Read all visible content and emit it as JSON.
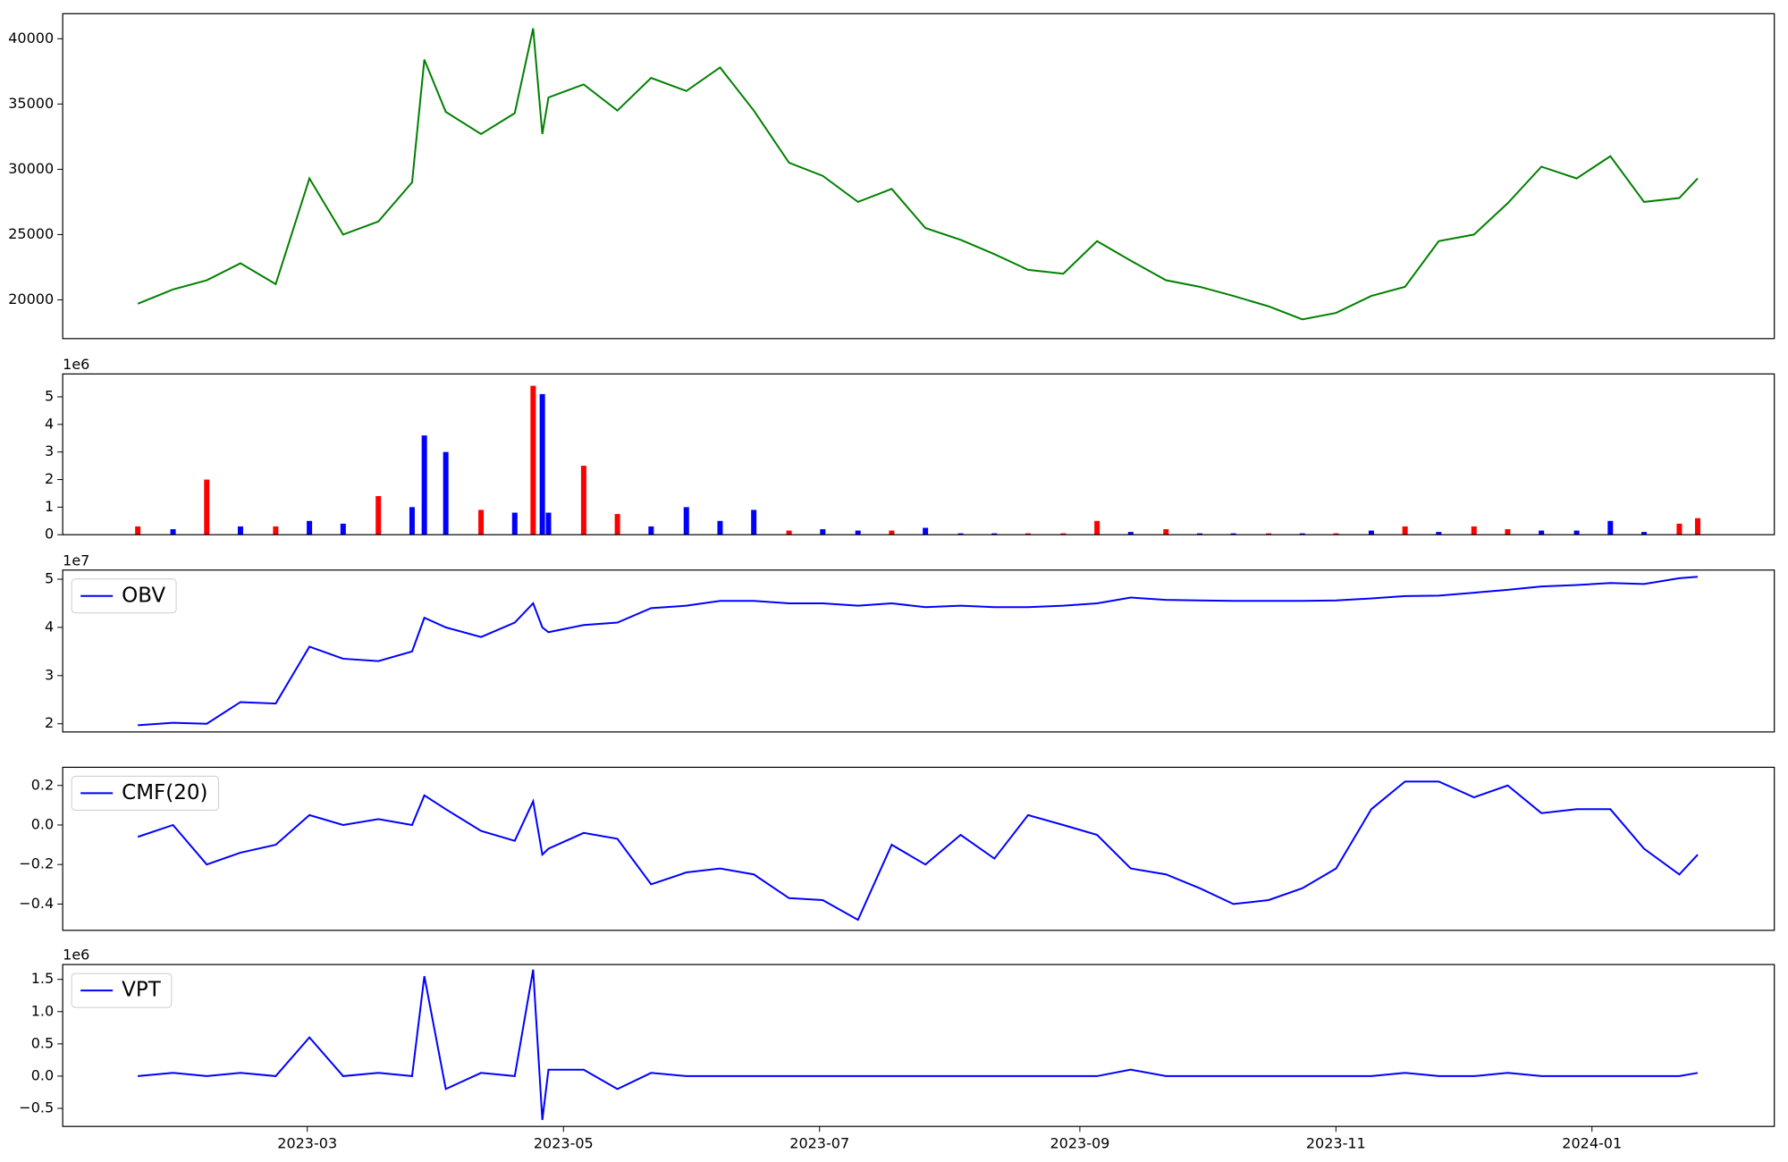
{
  "chart_data": [
    {
      "type": "line",
      "color": "green",
      "x": [
        2023.051,
        2023.074,
        2023.096,
        2023.118,
        2023.141,
        2023.163,
        2023.185,
        2023.208,
        2023.23,
        2023.238,
        2023.252,
        2023.275,
        2023.297,
        2023.309,
        2023.315,
        2023.319,
        2023.342,
        2023.364,
        2023.386,
        2023.409,
        2023.431,
        2023.453,
        2023.476,
        2023.498,
        2023.521,
        2023.543,
        2023.565,
        2023.588,
        2023.61,
        2023.632,
        2023.655,
        2023.677,
        2023.699,
        2023.722,
        2023.744,
        2023.766,
        2023.789,
        2023.811,
        2023.833,
        2023.856,
        2023.878,
        2023.9,
        2023.923,
        2023.945,
        2023.967,
        2023.99,
        2024.012,
        2024.034,
        2024.057,
        2024.069
      ],
      "values": [
        19700,
        20800,
        21500,
        22800,
        21200,
        29300,
        25000,
        26000,
        29000,
        38400,
        34400,
        32700,
        34300,
        40800,
        32700,
        35500,
        36500,
        34500,
        37000,
        36000,
        37800,
        34500,
        30500,
        29500,
        27500,
        28500,
        25500,
        24600,
        23500,
        22300,
        22000,
        24500,
        23000,
        21500,
        21000,
        20300,
        19500,
        18500,
        19000,
        20300,
        21000,
        24500,
        25000,
        27400,
        30200,
        29300,
        31000,
        27500,
        27800,
        29300
      ],
      "xlim": [
        2023.002,
        2024.119
      ],
      "ylim": [
        17030,
        41920
      ],
      "yticks": [
        20000,
        25000,
        30000,
        35000,
        40000
      ]
    },
    {
      "type": "bar",
      "offset_text": "1e6",
      "x": [
        2023.051,
        2023.074,
        2023.096,
        2023.118,
        2023.141,
        2023.163,
        2023.185,
        2023.208,
        2023.23,
        2023.238,
        2023.252,
        2023.275,
        2023.297,
        2023.309,
        2023.315,
        2023.319,
        2023.342,
        2023.364,
        2023.386,
        2023.409,
        2023.431,
        2023.453,
        2023.476,
        2023.498,
        2023.521,
        2023.543,
        2023.565,
        2023.588,
        2023.61,
        2023.632,
        2023.655,
        2023.677,
        2023.699,
        2023.722,
        2023.744,
        2023.766,
        2023.789,
        2023.811,
        2023.833,
        2023.856,
        2023.878,
        2023.9,
        2023.923,
        2023.945,
        2023.967,
        2023.99,
        2024.012,
        2024.034,
        2024.057,
        2024.069
      ],
      "values": [
        0.3,
        0.2,
        2.0,
        0.3,
        0.3,
        0.5,
        0.4,
        1.4,
        1.0,
        3.6,
        3.0,
        0.9,
        0.8,
        5.4,
        5.1,
        0.8,
        2.5,
        0.75,
        0.3,
        1.0,
        0.5,
        0.9,
        0.15,
        0.2,
        0.15,
        0.15,
        0.25,
        0.05,
        0.05,
        0.05,
        0.05,
        0.5,
        0.1,
        0.2,
        0.05,
        0.05,
        0.05,
        0.05,
        0.05,
        0.15,
        0.3,
        0.1,
        0.3,
        0.2,
        0.15,
        0.15,
        0.5,
        0.1,
        0.4,
        0.6
      ],
      "colors": [
        "red",
        "blue",
        "red",
        "blue",
        "red",
        "blue",
        "blue",
        "red",
        "blue",
        "blue",
        "blue",
        "red",
        "blue",
        "red",
        "blue",
        "blue",
        "red",
        "red",
        "blue",
        "blue",
        "blue",
        "blue",
        "red",
        "blue",
        "blue",
        "red",
        "blue",
        "blue",
        "blue",
        "red",
        "red",
        "red",
        "blue",
        "red",
        "blue",
        "blue",
        "red",
        "blue",
        "red",
        "blue",
        "red",
        "blue",
        "red",
        "red",
        "blue",
        "blue",
        "blue",
        "blue",
        "red",
        "red"
      ],
      "xlim": [
        2023.002,
        2024.119
      ],
      "ylim": [
        0,
        5.83
      ],
      "yticks": [
        0,
        1,
        2,
        3,
        4,
        5
      ]
    },
    {
      "type": "line",
      "offset_text": "1e7",
      "legend": "upper left",
      "x": [
        2023.051,
        2023.074,
        2023.096,
        2023.118,
        2023.141,
        2023.163,
        2023.185,
        2023.208,
        2023.23,
        2023.238,
        2023.252,
        2023.275,
        2023.297,
        2023.309,
        2023.315,
        2023.319,
        2023.342,
        2023.364,
        2023.386,
        2023.409,
        2023.431,
        2023.453,
        2023.476,
        2023.498,
        2023.521,
        2023.543,
        2023.565,
        2023.588,
        2023.61,
        2023.632,
        2023.655,
        2023.677,
        2023.699,
        2023.722,
        2023.744,
        2023.766,
        2023.789,
        2023.811,
        2023.833,
        2023.856,
        2023.878,
        2023.9,
        2023.923,
        2023.945,
        2023.967,
        2023.99,
        2024.012,
        2024.034,
        2024.057,
        2024.069
      ],
      "series": [
        {
          "name": "OBV",
          "color": "blue",
          "values": [
            1.97,
            2.02,
            2.0,
            2.45,
            2.42,
            3.6,
            3.35,
            3.3,
            3.5,
            4.2,
            4.0,
            3.8,
            4.1,
            4.5,
            4.0,
            3.9,
            4.05,
            4.1,
            4.4,
            4.45,
            4.55,
            4.55,
            4.5,
            4.5,
            4.45,
            4.5,
            4.42,
            4.45,
            4.42,
            4.42,
            4.45,
            4.5,
            4.62,
            4.57,
            4.56,
            4.55,
            4.55,
            4.55,
            4.56,
            4.6,
            4.65,
            4.66,
            4.72,
            4.78,
            4.85,
            4.88,
            4.92,
            4.9,
            5.02,
            5.05
          ]
        }
      ],
      "xlim": [
        2023.002,
        2024.119
      ],
      "ylim": [
        1.83,
        5.19
      ],
      "yticks": [
        2,
        3,
        4,
        5
      ]
    },
    {
      "type": "line",
      "legend": "upper left",
      "x": [
        2023.051,
        2023.074,
        2023.096,
        2023.118,
        2023.141,
        2023.163,
        2023.185,
        2023.208,
        2023.23,
        2023.238,
        2023.252,
        2023.275,
        2023.297,
        2023.309,
        2023.315,
        2023.319,
        2023.342,
        2023.364,
        2023.386,
        2023.409,
        2023.431,
        2023.453,
        2023.476,
        2023.498,
        2023.521,
        2023.543,
        2023.565,
        2023.588,
        2023.61,
        2023.632,
        2023.655,
        2023.677,
        2023.699,
        2023.722,
        2023.744,
        2023.766,
        2023.789,
        2023.811,
        2023.833,
        2023.856,
        2023.878,
        2023.9,
        2023.923,
        2023.945,
        2023.967,
        2023.99,
        2024.012,
        2024.034,
        2024.057,
        2024.069
      ],
      "series": [
        {
          "name": "CMF(20)",
          "color": "blue",
          "values": [
            -0.06,
            0.0,
            -0.2,
            -0.14,
            -0.1,
            0.05,
            0.0,
            0.03,
            0.0,
            0.15,
            0.08,
            -0.03,
            -0.08,
            0.12,
            -0.15,
            -0.12,
            -0.04,
            -0.07,
            -0.3,
            -0.24,
            -0.22,
            -0.25,
            -0.37,
            -0.38,
            -0.48,
            -0.1,
            -0.2,
            -0.05,
            -0.17,
            0.05,
            0.0,
            -0.05,
            -0.22,
            -0.25,
            -0.32,
            -0.4,
            -0.38,
            -0.32,
            -0.22,
            0.08,
            0.22,
            0.22,
            0.14,
            0.2,
            0.06,
            0.08,
            0.08,
            -0.12,
            -0.25,
            -0.15
          ]
        }
      ],
      "xlim": [
        2023.002,
        2024.119
      ],
      "ylim": [
        -0.533,
        0.292
      ],
      "yticks": [
        {
          "value": -0.4,
          "label": "−0.4"
        },
        {
          "value": -0.2,
          "label": "−0.2"
        },
        {
          "value": 0,
          "label": "0.0"
        },
        0.2
      ]
    },
    {
      "type": "line",
      "offset_text": "1e6",
      "legend": "upper left",
      "x": [
        2023.051,
        2023.074,
        2023.096,
        2023.118,
        2023.141,
        2023.163,
        2023.185,
        2023.208,
        2023.23,
        2023.238,
        2023.252,
        2023.275,
        2023.297,
        2023.309,
        2023.315,
        2023.319,
        2023.342,
        2023.364,
        2023.386,
        2023.409,
        2023.431,
        2023.453,
        2023.476,
        2023.498,
        2023.521,
        2023.543,
        2023.565,
        2023.588,
        2023.61,
        2023.632,
        2023.655,
        2023.677,
        2023.699,
        2023.722,
        2023.744,
        2023.766,
        2023.789,
        2023.811,
        2023.833,
        2023.856,
        2023.878,
        2023.9,
        2023.923,
        2023.945,
        2023.967,
        2023.99,
        2024.012,
        2024.034,
        2024.057,
        2024.069
      ],
      "series": [
        {
          "name": "VPT",
          "color": "blue",
          "values": [
            0.0,
            0.05,
            0.0,
            0.05,
            0.0,
            0.6,
            0.0,
            0.05,
            0.0,
            1.55,
            -0.2,
            0.05,
            0.0,
            1.65,
            -0.68,
            0.1,
            0.1,
            -0.2,
            0.05,
            0.0,
            0.0,
            0.0,
            0.0,
            0.0,
            0.0,
            0.0,
            0.0,
            0.0,
            0.0,
            0.0,
            0.0,
            0.0,
            0.1,
            0.0,
            0.0,
            0.0,
            0.0,
            0.0,
            0.0,
            0.0,
            0.05,
            0.0,
            0.0,
            0.05,
            0.0,
            0.0,
            0.0,
            0.0,
            0.0,
            0.05
          ]
        }
      ],
      "xlim": [
        2023.002,
        2024.119
      ],
      "ylim": [
        -0.78,
        1.73
      ],
      "yticks": [
        {
          "value": -0.5,
          "label": "−0.5"
        },
        {
          "value": 0,
          "label": "0.0"
        },
        0.5,
        {
          "value": 1,
          "label": "1.0"
        },
        1.5
      ],
      "xticks": [
        {
          "value": 2023.1616,
          "label": "2023-03"
        },
        {
          "value": 2023.3288,
          "label": "2023-05"
        },
        {
          "value": 2023.4959,
          "label": "2023-07"
        },
        {
          "value": 2023.6658,
          "label": "2023-09"
        },
        {
          "value": 2023.8329,
          "label": "2023-11"
        },
        {
          "value": 2024.0,
          "label": "2024-01"
        }
      ]
    }
  ]
}
